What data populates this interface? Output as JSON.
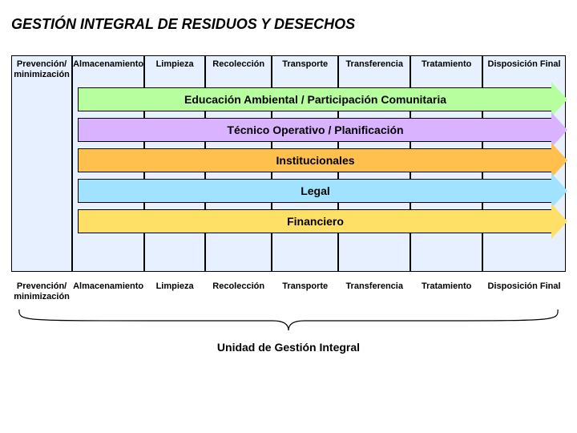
{
  "title": "GESTIÓN INTEGRAL DE RESIDUOS Y DESECHOS",
  "columns": [
    {
      "label": "Prevención/ minimización",
      "bg": "#e6f0ff",
      "width": 11
    },
    {
      "label": "Almacenamiento",
      "bg": "#e6f0ff",
      "width": 13
    },
    {
      "label": "Limpieza",
      "bg": "#e6f0ff",
      "width": 11
    },
    {
      "label": "Recolección",
      "bg": "#e6f0ff",
      "width": 12
    },
    {
      "label": "Transporte",
      "bg": "#e6f0ff",
      "width": 12
    },
    {
      "label": "Transferencia",
      "bg": "#e6f0ff",
      "width": 13
    },
    {
      "label": "Tratamiento",
      "bg": "#e6f0ff",
      "width": 13
    },
    {
      "label": "Disposición Final",
      "bg": "#e6f0ff",
      "width": 15
    }
  ],
  "arrows": [
    {
      "label": "Educación Ambiental / Participación Comunitaria",
      "fill": "#b7ff9e"
    },
    {
      "label": "Técnico Operativo / Planificación",
      "fill": "#d9b3ff"
    },
    {
      "label": "Institucionales",
      "fill": "#ffc04d"
    },
    {
      "label": "Legal",
      "fill": "#a1e3ff"
    },
    {
      "label": "Financiero",
      "fill": "#ffe066"
    }
  ],
  "bottom_labels": [
    {
      "label": "Prevención/ minimización",
      "width": 11
    },
    {
      "label": "Almacenamiento",
      "width": 13
    },
    {
      "label": "Limpieza",
      "width": 11
    },
    {
      "label": "Recolección",
      "width": 12
    },
    {
      "label": "Transporte",
      "width": 12
    },
    {
      "label": "Transferencia",
      "width": 13
    },
    {
      "label": "Tratamiento",
      "width": 13
    },
    {
      "label": "Disposición Final",
      "width": 15
    }
  ],
  "unit_label": "Unidad de Gestión Integral",
  "brace_color": "#000000"
}
